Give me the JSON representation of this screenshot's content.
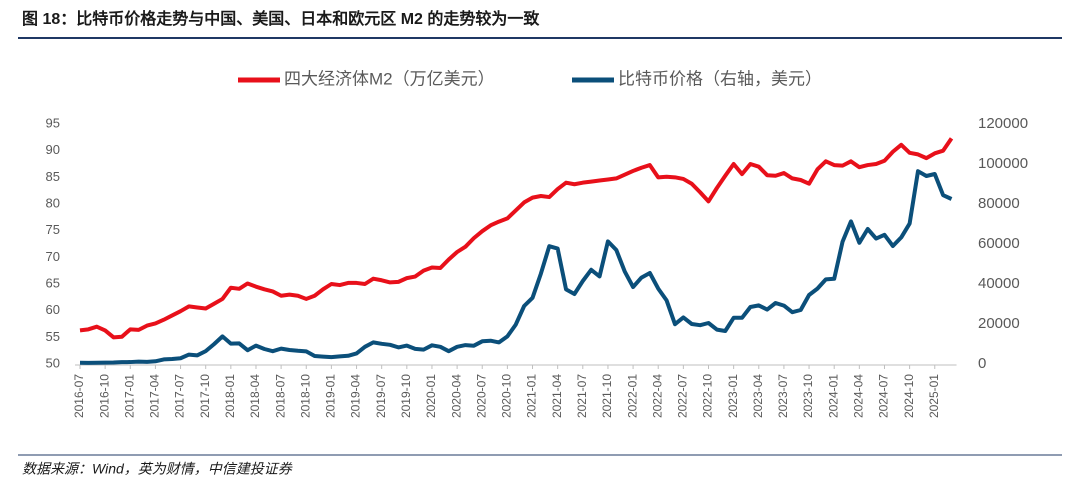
{
  "header": {
    "title": "图 18：比特币价格走势与中国、美国、日本和欧元区 M2 的走势较为一致"
  },
  "footer": {
    "source": "数据来源：Wind，英为财情，中信建投证券"
  },
  "chart_data": {
    "type": "line",
    "categories": [
      "2016-07",
      null,
      null,
      "2016-10",
      null,
      null,
      "2017-01",
      null,
      null,
      "2017-04",
      null,
      null,
      "2017-07",
      null,
      null,
      "2017-10",
      null,
      null,
      "2018-01",
      null,
      null,
      "2018-04",
      null,
      null,
      "2018-07",
      null,
      null,
      "2018-10",
      null,
      null,
      "2019-01",
      null,
      null,
      "2019-04",
      null,
      null,
      "2019-07",
      null,
      null,
      "2019-10",
      null,
      null,
      "2020-01",
      null,
      null,
      "2020-04",
      null,
      null,
      "2020-07",
      null,
      null,
      "2020-10",
      null,
      null,
      "2021-01",
      null,
      null,
      "2021-04",
      null,
      null,
      "2021-07",
      null,
      null,
      "2021-10",
      null,
      null,
      "2022-01",
      null,
      null,
      "2022-04",
      null,
      null,
      "2022-07",
      null,
      null,
      "2022-10",
      null,
      null,
      "2023-01",
      null,
      null,
      "2023-04",
      null,
      null,
      "2023-07",
      null,
      null,
      "2023-10",
      null,
      null,
      "2024-01",
      null,
      null,
      "2024-04",
      null,
      null,
      "2024-07",
      null,
      null,
      "2024-10",
      null,
      null,
      "2025-01",
      null,
      null
    ],
    "series": [
      {
        "name": "四大经济体M2（万亿美元）",
        "color": "#e8101a",
        "values": [
          56.3,
          56.5,
          57.0,
          56.3,
          55.0,
          55.1,
          56.5,
          56.4,
          57.2,
          57.6,
          58.3,
          59.1,
          59.9,
          60.8,
          60.6,
          60.4,
          61.3,
          62.2,
          64.3,
          64.1,
          65.1,
          64.5,
          64.0,
          63.6,
          62.8,
          63.0,
          62.8,
          62.2,
          62.8,
          64.0,
          65.0,
          64.8,
          65.2,
          65.2,
          65.0,
          66.0,
          65.7,
          65.3,
          65.4,
          66.1,
          66.4,
          67.5,
          68.1,
          68.0,
          69.6,
          71.0,
          72.0,
          73.6,
          74.9,
          76.0,
          76.7,
          77.3,
          78.8,
          80.3,
          81.2,
          81.5,
          81.3,
          82.8,
          84.0,
          83.7,
          84.0,
          84.2,
          84.4,
          84.6,
          84.8,
          85.5,
          86.2,
          86.8,
          87.3,
          85.0,
          85.1,
          85.0,
          84.7,
          83.8,
          82.2,
          80.5,
          83.0,
          85.3,
          87.5,
          85.6,
          87.5,
          87.0,
          85.4,
          85.3,
          85.8,
          84.8,
          84.5,
          83.8,
          86.5,
          88.0,
          87.3,
          87.2,
          88.0,
          86.9,
          87.3,
          87.5,
          88.1,
          89.8,
          91.1,
          89.6,
          89.3,
          88.6,
          89.5,
          90.0,
          92.3
        ]
      },
      {
        "name": "比特币价格（右轴，美元）",
        "color": "#0b4f7a",
        "axis": "y2",
        "values": [
          620,
          575,
          610,
          700,
          740,
          960,
          970,
          1190,
          1070,
          1350,
          2300,
          2480,
          2870,
          4700,
          4340,
          6450,
          9950,
          13800,
          10200,
          10300,
          6900,
          9200,
          7500,
          6400,
          7700,
          7000,
          6600,
          6300,
          4000,
          3700,
          3450,
          3800,
          4100,
          5300,
          8600,
          10800,
          10100,
          9600,
          8300,
          9200,
          7550,
          7200,
          9350,
          8600,
          6400,
          8600,
          9450,
          9150,
          11350,
          11650,
          10800,
          13800,
          19700,
          29000,
          33100,
          45200,
          58900,
          57700,
          37300,
          35000,
          41500,
          47100,
          43800,
          61300,
          57000,
          46300,
          38500,
          43200,
          45500,
          37700,
          31800,
          19900,
          23300,
          20000,
          19400,
          20500,
          17200,
          16500,
          23100,
          23100,
          28500,
          29300,
          27200,
          30500,
          29200,
          25900,
          27000,
          34500,
          37700,
          42300,
          42600,
          61200,
          71300,
          60600,
          67500,
          62700,
          64600,
          59000,
          63300,
          70200,
          96400,
          94000,
          95000,
          84400,
          82500
        ]
      }
    ],
    "ylim": [
      50,
      95
    ],
    "yticks": [
      50,
      55,
      60,
      65,
      70,
      75,
      80,
      85,
      90,
      95
    ],
    "y2lim": [
      0,
      120000
    ],
    "y2ticks": [
      0,
      20000,
      40000,
      60000,
      80000,
      100000,
      120000
    ]
  }
}
